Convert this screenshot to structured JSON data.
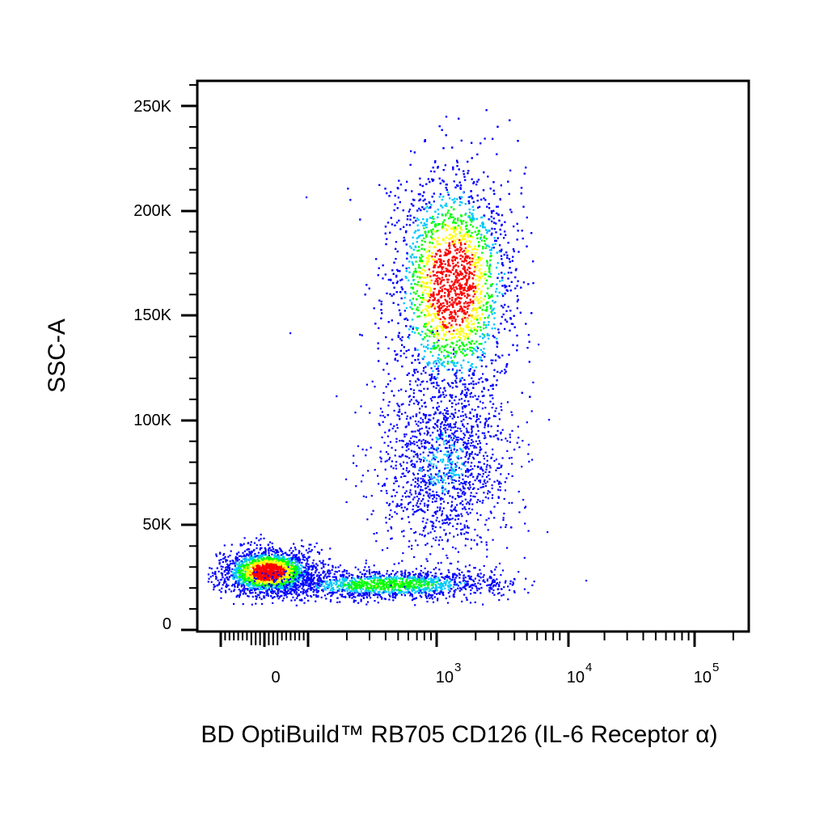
{
  "chart_data": {
    "type": "scatter",
    "style": "flow-cytometry density dot plot",
    "xlabel": "BD OptiBuild™ RB705 CD126 (IL-6 Receptor α)",
    "ylabel": "SSC-A",
    "x_scale": "biexponential (log above ~10^2, linear around 0)",
    "x_ticks": [
      {
        "value": 0,
        "label": "0"
      },
      {
        "value": 1000,
        "label": "10",
        "exp": "3"
      },
      {
        "value": 10000,
        "label": "10",
        "exp": "4"
      },
      {
        "value": 100000,
        "label": "10",
        "exp": "5"
      }
    ],
    "y_ticks": [
      {
        "value": 0,
        "label": "0"
      },
      {
        "value": 50000,
        "label": "50K"
      },
      {
        "value": 100000,
        "label": "100K"
      },
      {
        "value": 150000,
        "label": "150K"
      },
      {
        "value": 200000,
        "label": "200K"
      },
      {
        "value": 250000,
        "label": "250K"
      }
    ],
    "ylim": [
      0,
      262144
    ],
    "grid": false,
    "density_colors": [
      "#0000ff",
      "#00c8ff",
      "#00ff00",
      "#ffff00",
      "#ff0000"
    ],
    "populations": [
      {
        "x_center": 0,
        "y_center": 28000,
        "weight": 0.22
      },
      {
        "x_center": 300,
        "y_center": 22000,
        "weight": 0.12
      },
      {
        "x_center": 1300,
        "y_center": 165000,
        "weight": 0.45
      },
      {
        "x_center": 1200,
        "y_center": 80000,
        "weight": 0.21
      }
    ]
  }
}
